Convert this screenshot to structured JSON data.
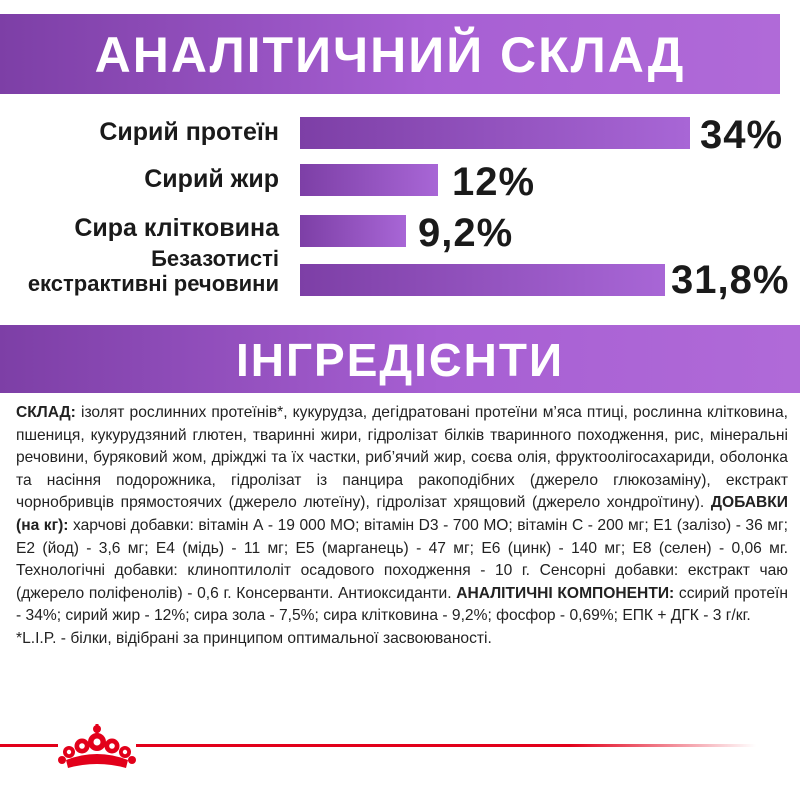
{
  "analysis": {
    "title": "АНАЛІТИЧНИЙ СКЛАД",
    "rows": [
      {
        "label": "Сирий протеїн",
        "value": "34%",
        "percent": 34
      },
      {
        "label": "Сирий жир",
        "value": "12%",
        "percent": 12
      },
      {
        "label": "Сира клітковина",
        "value": "9,2%",
        "percent": 9.2
      },
      {
        "label_line1": "Безазотисті",
        "label_line2": "екстрактивні речовини",
        "value": "31,8%",
        "percent": 31.8
      }
    ]
  },
  "ingredients": {
    "title": "ІНГРЕДІЄНТИ",
    "composition_label": "СКЛАД:",
    "composition_text": " ізолят рослинних протеїнів*, кукурудза, дегідратовані протеїни м’яса птиці, рослинна клітковина, пшениця, кукурудзяний глютен, тваринні жири, гідролізат білків тваринного походження, рис, мінеральні речовини, буряковий жом, дріжджі та їх частки, риб’ячий жир, соєва олія, фруктоолігосахариди, оболонка та насіння подорожника, гідролізат із панцира ракоподібних (джерело глюкозаміну), екстракт чорнобривців прямостоячих (джерело лютеїну), гідролізат хрящовий (джерело хондроїтину). ",
    "additives_label": "ДОБАВКИ (на кг):",
    "additives_text": " харчові добавки: вітамін А - 19 000 МО; вітамін D3 - 700 МО; вітамін С - 200 мг; Е1 (залізо) - 36 мг; Е2 (йод) - 3,6 мг; Е4 (мідь) - 11 мг; Е5 (марганець) - 47 мг; Е6 (цинк) - 140 мг; Е8 (селен) - 0,06 мг. Технологічні добавки: клиноптилоліт осадового походження - 10 г. Сенсорні добавки: екстракт чаю (джерело поліфенолів) - 0,6 г. Консерванти. Антиоксиданти. ",
    "analytic_label": "АНАЛІТИЧНІ КОМПОНЕНТИ:",
    "analytic_text": " ссирий протеїн - 34%; сирий жир - 12%; сира зола - 7,5%; сира клітковина - 9,2%; фосфор - 0,69%; ЕПК + ДГК - 3 г/кг.",
    "footnote": "*L.I.P. - білки, відібрані за принципом оптимальної засвоюваності."
  },
  "colors": {
    "purple_dark": "#7d3fa6",
    "purple_light": "#a866d6",
    "brand_red": "#e2001a"
  },
  "footer": {
    "logo_icon": "royal-crown-icon"
  }
}
